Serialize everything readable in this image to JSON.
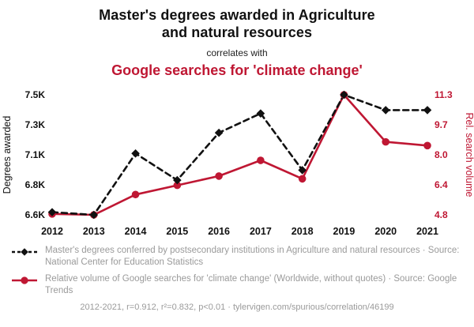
{
  "header": {
    "title_line1": "Master's degrees awarded in Agriculture",
    "title_line2": "and natural resources",
    "connector": "correlates with",
    "secondary_title": "Google searches for 'climate change'"
  },
  "colors": {
    "accent_red": "#bf1733",
    "series_black": "#111111",
    "muted_gray": "#9a9a9a"
  },
  "chart_data": {
    "type": "line",
    "x": [
      2012,
      2013,
      2014,
      2015,
      2016,
      2017,
      2018,
      2019,
      2020,
      2021
    ],
    "x_tick_labels": [
      "2012",
      "2013",
      "2014",
      "2015",
      "2016",
      "2017",
      "2018",
      "2019",
      "2020",
      "2021"
    ],
    "left_axis": {
      "label": "Degrees awarded",
      "tick_labels": [
        "7.5K",
        "7.3K",
        "7.1K",
        "6.8K",
        "6.6K"
      ],
      "range": [
        6600,
        7500
      ],
      "color": "#111111"
    },
    "right_axis": {
      "label": "Rel. search volume",
      "tick_labels": [
        "11.3",
        "9.7",
        "8.0",
        "6.4",
        "4.8"
      ],
      "range": [
        4.8,
        11.3
      ],
      "color": "#bf1733"
    },
    "series": [
      {
        "name": "Master's degrees conferred in Agriculture and natural resources",
        "axis": "left",
        "color": "#111111",
        "line_style": "dashed",
        "marker": "diamond",
        "values": [
          6620,
          6600,
          7060,
          6860,
          7215,
          7360,
          6935,
          7500,
          7385,
          7385
        ]
      },
      {
        "name": "Google searches for 'climate change'",
        "axis": "right",
        "color": "#bf1733",
        "line_style": "solid",
        "marker": "circle",
        "values": [
          4.85,
          4.8,
          5.9,
          6.4,
          6.9,
          7.75,
          6.75,
          11.3,
          8.75,
          8.55
        ]
      }
    ],
    "grid": false,
    "legend_position": "bottom"
  },
  "legend": {
    "items": [
      {
        "text": "Master's degrees conferred by postsecondary institutions in Agriculture and natural resources · Source: National Center for Education Statistics"
      },
      {
        "text": "Relative volume of Google searches for 'climate change' (Worldwide, without quotes) · Source: Google Trends"
      }
    ]
  },
  "footer": {
    "text": "2012-2021, r=0.912, r²=0.832, p<0.01 · tylervigen.com/spurious/correlation/46199"
  }
}
